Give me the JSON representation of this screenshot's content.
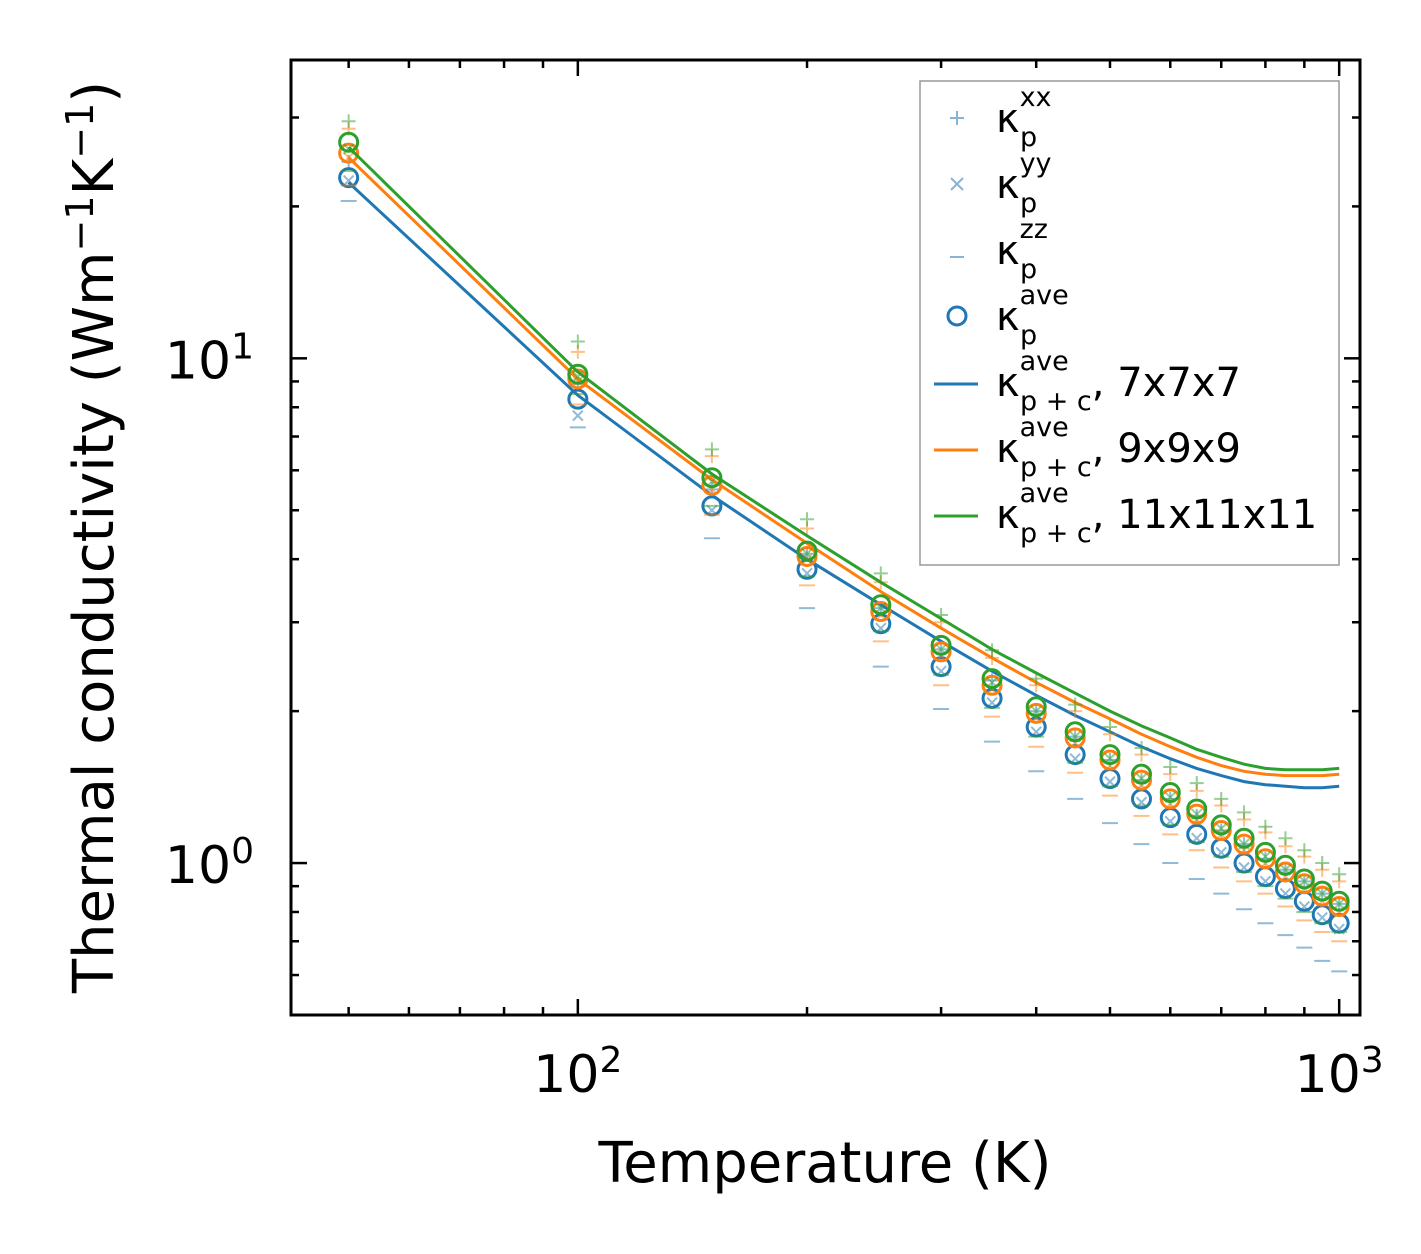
{
  "chart_data": {
    "type": "scatter",
    "xscale": "log",
    "yscale": "log",
    "xlabel": "Temperature (K)",
    "ylabel": "Thermal conductivity (Wm",
    "ylabel_units": {
      "m_exp": "−1",
      "k": "K",
      "k_exp": "−1",
      "close": ")"
    },
    "xlim": [
      42,
      1065
    ],
    "ylim": [
      0.5,
      39
    ],
    "x_ticks": [
      {
        "value": 100,
        "base": "10",
        "exp": "2"
      },
      {
        "value": 1000,
        "base": "10",
        "exp": "3"
      }
    ],
    "y_ticks": [
      {
        "value": 1,
        "base": "10",
        "exp": "0"
      },
      {
        "value": 10,
        "base": "10",
        "exp": "1"
      }
    ],
    "temperatures": [
      50,
      100,
      150,
      200,
      250,
      300,
      350,
      400,
      450,
      500,
      550,
      600,
      650,
      700,
      750,
      800,
      850,
      900,
      950,
      1000
    ],
    "series": [
      {
        "name": "7x7x7",
        "color": "#1f77b4",
        "ave": [
          22.8,
          8.3,
          5.1,
          3.82,
          2.98,
          2.45,
          2.12,
          1.86,
          1.64,
          1.47,
          1.34,
          1.23,
          1.14,
          1.07,
          1.0,
          0.94,
          0.89,
          0.84,
          0.79,
          0.76
        ],
        "xx": [
          24.5,
          8.9,
          5.5,
          4.1,
          3.2,
          2.65,
          2.3,
          2.0,
          1.78,
          1.6,
          1.46,
          1.34,
          1.24,
          1.16,
          1.09,
          1.02,
          0.97,
          0.92,
          0.87,
          0.83
        ],
        "yy": [
          22.5,
          7.7,
          5.0,
          3.75,
          2.92,
          2.4,
          2.08,
          1.82,
          1.61,
          1.45,
          1.32,
          1.21,
          1.12,
          1.05,
          0.98,
          0.92,
          0.87,
          0.82,
          0.78,
          0.74
        ],
        "zz": [
          20.5,
          7.3,
          4.4,
          3.2,
          2.45,
          2.02,
          1.74,
          1.52,
          1.34,
          1.2,
          1.09,
          1.0,
          0.93,
          0.87,
          0.81,
          0.76,
          0.72,
          0.68,
          0.64,
          0.61
        ],
        "fit": [
          22.3,
          8.45,
          5.35,
          4.0,
          3.25,
          2.75,
          2.4,
          2.15,
          1.96,
          1.82,
          1.7,
          1.61,
          1.54,
          1.49,
          1.45,
          1.43,
          1.42,
          1.41,
          1.41,
          1.42
        ]
      },
      {
        "name": "9x9x9",
        "color": "#ff7f0e",
        "ave": [
          25.5,
          9.1,
          5.6,
          4.05,
          3.15,
          2.62,
          2.25,
          1.98,
          1.77,
          1.6,
          1.46,
          1.34,
          1.25,
          1.16,
          1.09,
          1.02,
          0.96,
          0.91,
          0.86,
          0.82
        ],
        "xx": [
          28.5,
          10.3,
          6.4,
          4.6,
          3.6,
          3.0,
          2.55,
          2.25,
          2.0,
          1.8,
          1.64,
          1.5,
          1.39,
          1.3,
          1.22,
          1.15,
          1.08,
          1.03,
          0.97,
          0.92
        ],
        "yy": [
          25.0,
          9.0,
          5.5,
          4.0,
          3.1,
          2.57,
          2.21,
          1.94,
          1.73,
          1.56,
          1.43,
          1.31,
          1.22,
          1.14,
          1.06,
          1.0,
          0.94,
          0.89,
          0.84,
          0.8
        ],
        "zz": [
          22.0,
          8.1,
          4.9,
          3.55,
          2.75,
          2.25,
          1.95,
          1.7,
          1.51,
          1.36,
          1.24,
          1.14,
          1.06,
          0.98,
          0.92,
          0.87,
          0.82,
          0.77,
          0.73,
          0.7
        ],
        "fit": [
          25.0,
          9.1,
          5.75,
          4.3,
          3.45,
          2.92,
          2.55,
          2.28,
          2.08,
          1.93,
          1.8,
          1.7,
          1.62,
          1.56,
          1.52,
          1.5,
          1.49,
          1.49,
          1.49,
          1.5
        ]
      },
      {
        "name": "11x11x11",
        "color": "#2ca02c",
        "ave": [
          26.8,
          9.3,
          5.8,
          4.15,
          3.25,
          2.7,
          2.32,
          2.04,
          1.82,
          1.64,
          1.5,
          1.38,
          1.28,
          1.19,
          1.12,
          1.05,
          0.99,
          0.93,
          0.88,
          0.84
        ],
        "xx": [
          29.5,
          10.8,
          6.6,
          4.8,
          3.75,
          3.1,
          2.64,
          2.32,
          2.06,
          1.86,
          1.69,
          1.55,
          1.44,
          1.34,
          1.26,
          1.18,
          1.12,
          1.06,
          1.0,
          0.95
        ],
        "yy": [
          26.0,
          9.2,
          5.7,
          4.1,
          3.2,
          2.65,
          2.28,
          2.0,
          1.78,
          1.61,
          1.47,
          1.35,
          1.25,
          1.17,
          1.09,
          1.03,
          0.97,
          0.92,
          0.87,
          0.83
        ],
        "zz": [
          23.5,
          8.5,
          5.1,
          3.7,
          2.88,
          2.36,
          2.03,
          1.78,
          1.58,
          1.42,
          1.3,
          1.19,
          1.1,
          1.03,
          0.96,
          0.9,
          0.85,
          0.8,
          0.76,
          0.73
        ],
        "fit": [
          26.2,
          9.4,
          5.9,
          4.45,
          3.6,
          3.05,
          2.65,
          2.38,
          2.17,
          2.0,
          1.87,
          1.77,
          1.68,
          1.62,
          1.57,
          1.54,
          1.53,
          1.53,
          1.53,
          1.54
        ]
      }
    ],
    "legend": {
      "placement": "top-right",
      "entries": [
        {
          "symbol": "+",
          "kappa": "κ",
          "sub": "p",
          "sup": "xx",
          "suffix": ""
        },
        {
          "symbol": "×",
          "kappa": "κ",
          "sub": "p",
          "sup": "yy",
          "suffix": ""
        },
        {
          "symbol": "_",
          "kappa": "κ",
          "sub": "p",
          "sup": "zz",
          "suffix": ""
        },
        {
          "symbol": "o",
          "kappa": "κ",
          "sub": "p",
          "sup": "ave",
          "suffix": ""
        },
        {
          "symbol": "line",
          "color": "#1f77b4",
          "kappa": "κ",
          "sub": "p + c",
          "sup": "ave",
          "suffix": ", 7x7x7"
        },
        {
          "symbol": "line",
          "color": "#ff7f0e",
          "kappa": "κ",
          "sub": "p + c",
          "sup": "ave",
          "suffix": ", 9x9x9"
        },
        {
          "symbol": "line",
          "color": "#2ca02c",
          "kappa": "κ",
          "sub": "p + c",
          "sup": "ave",
          "suffix": ", 11x11x11"
        }
      ]
    }
  }
}
